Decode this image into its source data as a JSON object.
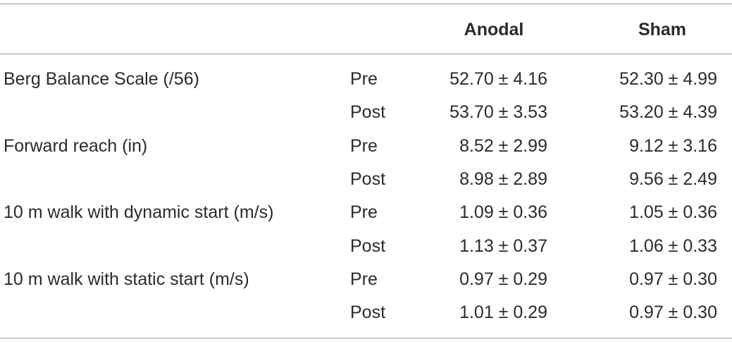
{
  "table": {
    "columns": [
      "Anodal",
      "Sham"
    ],
    "groups": [
      {
        "label": "Berg Balance Scale (/56)",
        "rows": [
          {
            "phase": "Pre",
            "values": [
              "52.70 ± 4.16",
              "52.30 ± 4.99"
            ]
          },
          {
            "phase": "Post",
            "values": [
              "53.70 ± 3.53",
              "53.20 ± 4.39"
            ]
          }
        ]
      },
      {
        "label": "Forward reach (in)",
        "rows": [
          {
            "phase": "Pre",
            "values": [
              "8.52 ± 2.99",
              "9.12 ± 3.16"
            ]
          },
          {
            "phase": "Post",
            "values": [
              "8.98 ± 2.89",
              "9.56 ± 2.49"
            ]
          }
        ]
      },
      {
        "label": "10 m walk with dynamic start (m/s)",
        "rows": [
          {
            "phase": "Pre",
            "values": [
              "1.09 ± 0.36",
              "1.05 ± 0.36"
            ]
          },
          {
            "phase": "Post",
            "values": [
              "1.13 ± 0.37",
              "1.06 ± 0.33"
            ]
          }
        ]
      },
      {
        "label": "10 m walk with static start (m/s)",
        "rows": [
          {
            "phase": "Pre",
            "values": [
              "0.97 ± 0.29",
              "0.97 ± 0.30"
            ]
          },
          {
            "phase": "Post",
            "values": [
              "1.01 ± 0.29",
              "0.97 ± 0.30"
            ]
          }
        ]
      }
    ]
  }
}
